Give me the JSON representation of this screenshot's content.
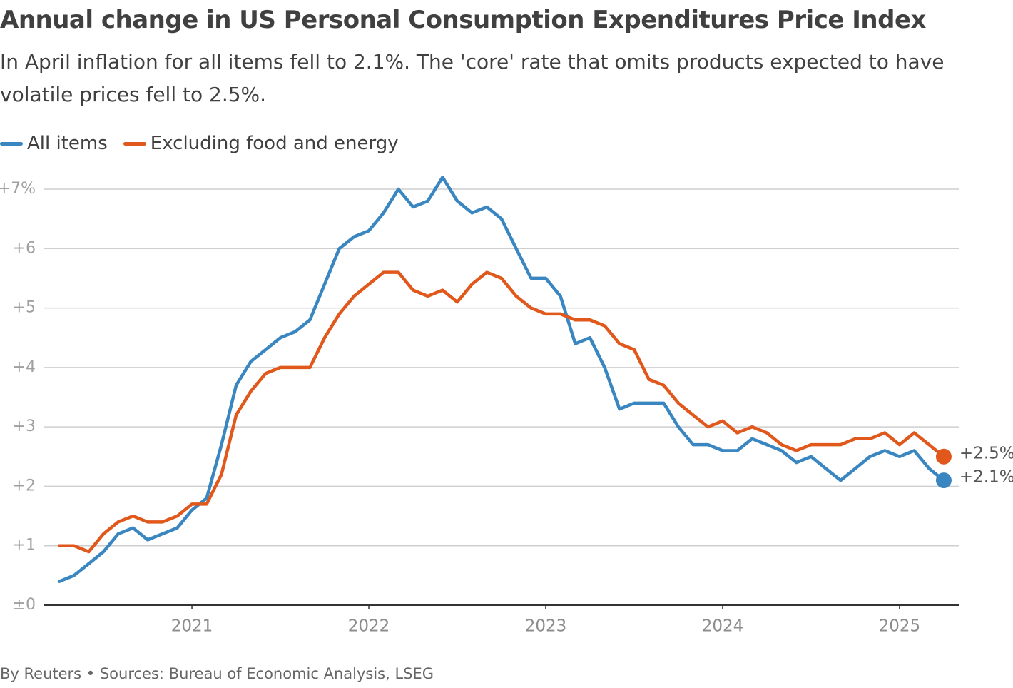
{
  "chart_data": {
    "type": "line",
    "title": "Annual change in US Personal Consumption Expenditures Price Index",
    "subtitle": "In April inflation for all items fell to 2.1%. The 'core' rate that omits products expected to have volatile prices fell to 2.5%.",
    "source": "By Reuters • Sources: Bureau of Economic Analysis, LSEG",
    "x": [
      2020.25,
      2020.333,
      2020.417,
      2020.5,
      2020.583,
      2020.667,
      2020.75,
      2020.833,
      2020.917,
      2021,
      2021.083,
      2021.167,
      2021.25,
      2021.333,
      2021.417,
      2021.5,
      2021.583,
      2021.667,
      2021.75,
      2021.833,
      2021.917,
      2022,
      2022.083,
      2022.167,
      2022.25,
      2022.333,
      2022.417,
      2022.5,
      2022.583,
      2022.667,
      2022.75,
      2022.833,
      2022.917,
      2023,
      2023.083,
      2023.167,
      2023.25,
      2023.333,
      2023.417,
      2023.5,
      2023.583,
      2023.667,
      2023.75,
      2023.833,
      2023.917,
      2024,
      2024.083,
      2024.167,
      2024.25,
      2024.333,
      2024.417,
      2024.5,
      2024.583,
      2024.667,
      2024.75,
      2024.833,
      2024.917,
      2025,
      2025.083,
      2025.167,
      2025.25
    ],
    "series": [
      {
        "name": "All items",
        "color": "#3a86c0",
        "values": [
          0.4,
          0.5,
          0.7,
          0.9,
          1.2,
          1.3,
          1.1,
          1.2,
          1.3,
          1.6,
          1.8,
          2.7,
          3.7,
          4.1,
          4.3,
          4.5,
          4.6,
          4.8,
          5.4,
          6.0,
          6.2,
          6.3,
          6.6,
          7.0,
          6.7,
          6.8,
          7.2,
          6.8,
          6.6,
          6.7,
          6.5,
          6.0,
          5.5,
          5.5,
          5.2,
          4.4,
          4.5,
          4.0,
          3.3,
          3.4,
          3.4,
          3.4,
          3.0,
          2.7,
          2.7,
          2.6,
          2.6,
          2.8,
          2.7,
          2.6,
          2.4,
          2.5,
          2.3,
          2.1,
          2.3,
          2.5,
          2.6,
          2.5,
          2.6,
          2.3,
          2.1
        ],
        "value_labels": [
          null,
          null,
          null,
          null,
          null,
          null,
          null,
          null,
          null,
          null,
          null,
          null,
          null,
          null,
          null,
          null,
          null,
          null,
          null,
          null,
          null,
          null,
          null,
          null,
          null,
          null,
          null,
          null,
          null,
          null,
          null,
          null,
          null,
          null,
          null,
          null,
          null,
          null,
          null,
          null,
          null,
          null,
          null,
          null,
          null,
          null,
          null,
          null,
          null,
          null,
          null,
          null,
          null,
          null,
          null,
          null,
          null,
          null,
          null,
          null,
          "+2.1%"
        ]
      },
      {
        "name": "Excluding food and energy",
        "color": "#e0581c",
        "values": [
          1.0,
          1.0,
          0.9,
          1.2,
          1.4,
          1.5,
          1.4,
          1.4,
          1.5,
          1.7,
          1.7,
          2.2,
          3.2,
          3.6,
          3.9,
          4.0,
          4.0,
          4.0,
          4.5,
          4.9,
          5.2,
          5.4,
          5.6,
          5.6,
          5.3,
          5.2,
          5.3,
          5.1,
          5.4,
          5.6,
          5.5,
          5.2,
          5.0,
          4.9,
          4.9,
          4.8,
          4.8,
          4.7,
          4.4,
          4.3,
          3.8,
          3.7,
          3.4,
          3.2,
          3.0,
          3.1,
          2.9,
          3.0,
          2.9,
          2.7,
          2.6,
          2.7,
          2.7,
          2.7,
          2.8,
          2.8,
          2.9,
          2.7,
          2.9,
          2.7,
          2.5
        ],
        "value_labels": [
          null,
          null,
          null,
          null,
          null,
          null,
          null,
          null,
          null,
          null,
          null,
          null,
          null,
          null,
          null,
          null,
          null,
          null,
          null,
          null,
          null,
          null,
          null,
          null,
          null,
          null,
          null,
          null,
          null,
          null,
          null,
          null,
          null,
          null,
          null,
          null,
          null,
          null,
          null,
          null,
          null,
          null,
          null,
          null,
          null,
          null,
          null,
          null,
          null,
          null,
          null,
          null,
          null,
          null,
          null,
          null,
          null,
          null,
          null,
          null,
          "+2.5%"
        ]
      }
    ],
    "xlim": [
      2020.165,
      2025.339
    ],
    "xticks": [
      2021,
      2022,
      2023,
      2024,
      2025
    ],
    "ylim": [
      0,
      7
    ],
    "yticks": [
      {
        "value": 0,
        "label": "±0"
      },
      {
        "value": 1,
        "label": "+1"
      },
      {
        "value": 2,
        "label": "+2"
      },
      {
        "value": 3,
        "label": "+3"
      },
      {
        "value": 4,
        "label": "+4"
      },
      {
        "value": 5,
        "label": "+5"
      },
      {
        "value": 6,
        "label": "+6"
      },
      {
        "value": 7,
        "label": "+7%"
      }
    ],
    "grid": true
  }
}
